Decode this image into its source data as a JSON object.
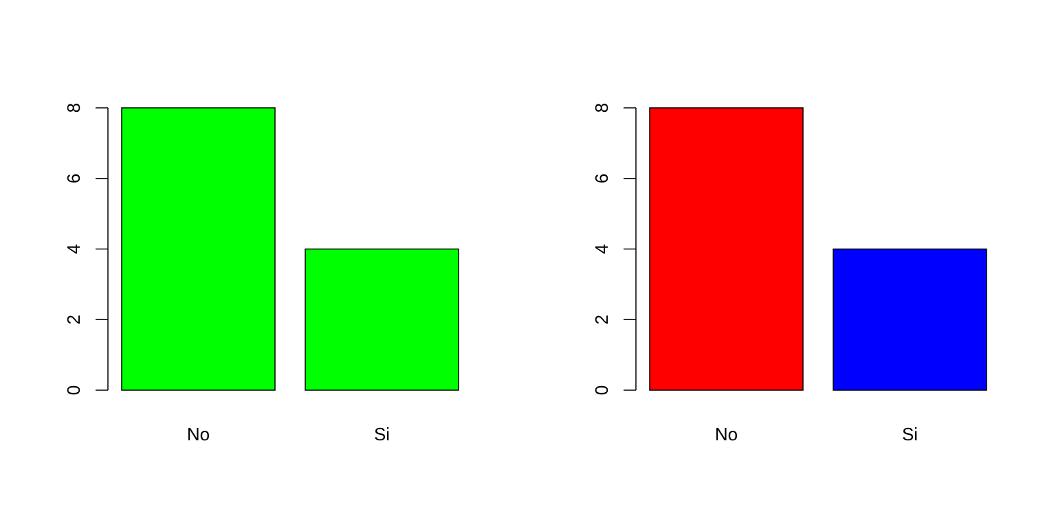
{
  "chart_data": [
    {
      "type": "bar",
      "categories": [
        "No",
        "Si"
      ],
      "values": [
        8,
        4
      ],
      "bar_colors": [
        "#00ff00",
        "#00ff00"
      ],
      "ylim": [
        0,
        8
      ],
      "yticks": [
        "0",
        "2",
        "4",
        "6",
        "8"
      ],
      "title": "",
      "xlabel": "",
      "ylabel": "",
      "grid": false,
      "legend": "none"
    },
    {
      "type": "bar",
      "categories": [
        "No",
        "Si"
      ],
      "values": [
        8,
        4
      ],
      "bar_colors": [
        "#ff0000",
        "#0000ff"
      ],
      "ylim": [
        0,
        8
      ],
      "yticks": [
        "0",
        "2",
        "4",
        "6",
        "8"
      ],
      "title": "",
      "xlabel": "",
      "ylabel": "",
      "grid": false,
      "legend": "none"
    }
  ]
}
